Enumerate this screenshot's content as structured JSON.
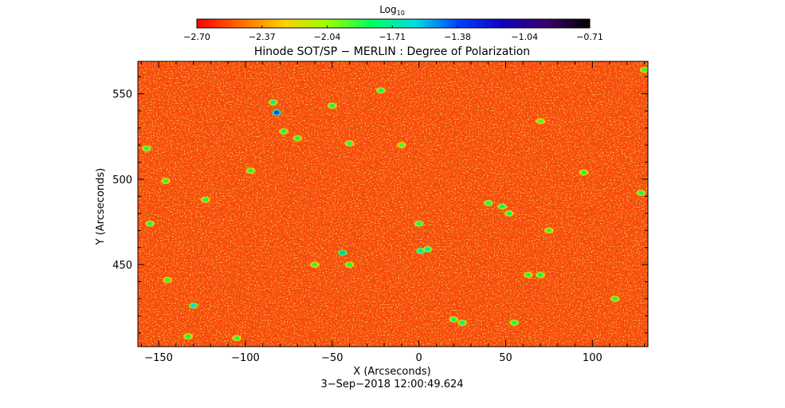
{
  "chart_data": {
    "type": "heatmap",
    "title": "Hinode SOT/SP − MERLIN : Degree of Polarization",
    "xlabel": "X (Arcseconds)",
    "ylabel": "Y (Arcseconds)",
    "timestamp": "3−Sep−2018 12:00:49.624",
    "xlim": [
      -162,
      132
    ],
    "ylim": [
      402,
      569
    ],
    "x_ticks": [
      -150,
      -100,
      -50,
      0,
      50,
      100
    ],
    "y_ticks": [
      450,
      500,
      550
    ],
    "x_tick_labels": [
      "−150",
      "−100",
      "−50",
      "0",
      "50",
      "100"
    ],
    "y_tick_labels": [
      "450",
      "500",
      "550"
    ],
    "colorbar": {
      "label_base": "Log",
      "label_sub": "10",
      "range": [
        -2.7,
        -0.71
      ],
      "tick_labels": [
        "−2.70",
        "−2.37",
        "−2.04",
        "−1.71",
        "−1.38",
        "−1.04",
        "−0.71"
      ],
      "tick_values": [
        -2.7,
        -2.37,
        -2.04,
        -1.71,
        -1.38,
        -1.04,
        -0.71
      ],
      "colormap": [
        "#ff0000",
        "#ff6a00",
        "#ffd000",
        "#9aff00",
        "#00ff60",
        "#00e0e0",
        "#0040ff",
        "#1000c0",
        "#3a0070",
        "#000000"
      ]
    },
    "field_background_color": "#f6460e",
    "features": [
      {
        "x": -82,
        "y": 539,
        "v": -1.35
      },
      {
        "x": -84,
        "y": 545,
        "v": -1.7
      },
      {
        "x": -78,
        "y": 528,
        "v": -1.75
      },
      {
        "x": -70,
        "y": 524,
        "v": -1.8
      },
      {
        "x": -50,
        "y": 543,
        "v": -1.8
      },
      {
        "x": -22,
        "y": 552,
        "v": -1.75
      },
      {
        "x": -40,
        "y": 521,
        "v": -1.85
      },
      {
        "x": -123,
        "y": 488,
        "v": -1.8
      },
      {
        "x": -97,
        "y": 505,
        "v": -1.8
      },
      {
        "x": -146,
        "y": 499,
        "v": -1.85
      },
      {
        "x": -157,
        "y": 518,
        "v": -1.8
      },
      {
        "x": -155,
        "y": 474,
        "v": -1.8
      },
      {
        "x": -145,
        "y": 441,
        "v": -1.85
      },
      {
        "x": -130,
        "y": 426,
        "v": -1.6
      },
      {
        "x": -133,
        "y": 408,
        "v": -1.8
      },
      {
        "x": -105,
        "y": 407,
        "v": -1.85
      },
      {
        "x": -60,
        "y": 450,
        "v": -1.85
      },
      {
        "x": -44,
        "y": 457,
        "v": -1.55
      },
      {
        "x": -40,
        "y": 450,
        "v": -1.8
      },
      {
        "x": 0,
        "y": 474,
        "v": -1.75
      },
      {
        "x": 1,
        "y": 458,
        "v": -1.6
      },
      {
        "x": 5,
        "y": 459,
        "v": -1.65
      },
      {
        "x": 20,
        "y": 418,
        "v": -1.8
      },
      {
        "x": 25,
        "y": 416,
        "v": -1.7
      },
      {
        "x": 40,
        "y": 486,
        "v": -1.75
      },
      {
        "x": 48,
        "y": 484,
        "v": -1.7
      },
      {
        "x": 52,
        "y": 480,
        "v": -1.8
      },
      {
        "x": 55,
        "y": 416,
        "v": -1.75
      },
      {
        "x": 63,
        "y": 444,
        "v": -1.8
      },
      {
        "x": 70,
        "y": 444,
        "v": -1.75
      },
      {
        "x": 75,
        "y": 470,
        "v": -1.85
      },
      {
        "x": 95,
        "y": 504,
        "v": -1.8
      },
      {
        "x": 113,
        "y": 430,
        "v": -1.8
      },
      {
        "x": 128,
        "y": 492,
        "v": -1.8
      },
      {
        "x": 130,
        "y": 564,
        "v": -1.85
      },
      {
        "x": -10,
        "y": 520,
        "v": -1.9
      },
      {
        "x": 70,
        "y": 534,
        "v": -1.9
      }
    ]
  }
}
